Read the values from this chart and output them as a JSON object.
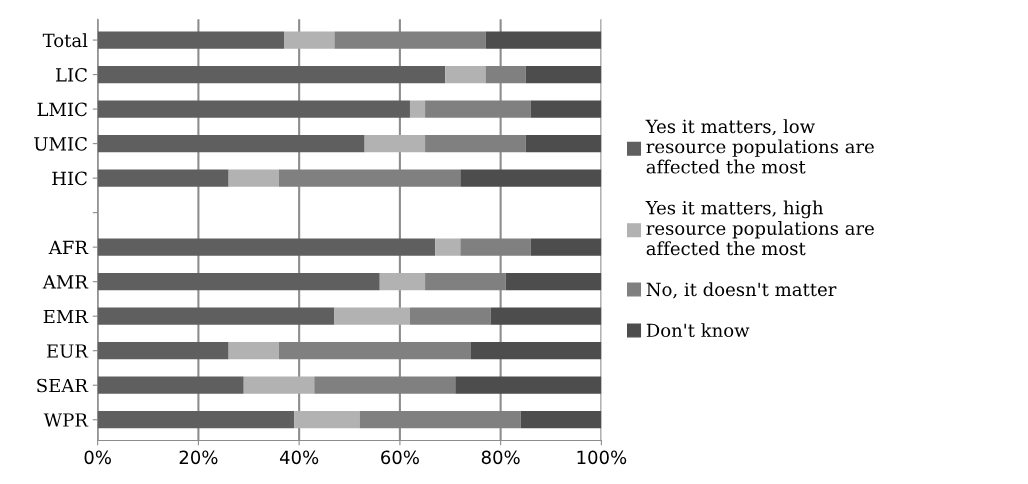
{
  "chart_data": {
    "type": "bar",
    "orientation": "horizontal",
    "stacked": true,
    "categories": [
      "Total",
      "LIC",
      "LMIC",
      "UMIC",
      "HIC",
      null,
      "AFR",
      "AMR",
      "EMR",
      "EUR",
      "SEAR",
      "WPR"
    ],
    "series": [
      {
        "name": "Yes it matters, low resource populations are affected the most",
        "color": "#5f5f5f",
        "values": [
          37,
          69,
          62,
          53,
          26,
          null,
          67,
          56,
          47,
          26,
          29,
          39
        ]
      },
      {
        "name": "Yes it matters, high resource populations are affected the most",
        "color": "#b2b2b2",
        "values": [
          10,
          8,
          3,
          12,
          10,
          null,
          5,
          9,
          15,
          10,
          14,
          13
        ]
      },
      {
        "name": "No, it doesn't matter",
        "color": "#808080",
        "values": [
          30,
          8,
          21,
          20,
          36,
          null,
          14,
          16,
          16,
          38,
          28,
          32
        ]
      },
      {
        "name": "Don't know",
        "color": "#4d4d4d",
        "values": [
          23,
          15,
          14,
          15,
          28,
          null,
          14,
          19,
          22,
          26,
          29,
          16
        ]
      }
    ],
    "xlim": [
      0,
      100
    ],
    "xticks": [
      {
        "value": 0,
        "label": "0%"
      },
      {
        "value": 20,
        "label": "20%"
      },
      {
        "value": 40,
        "label": "40%"
      },
      {
        "value": 60,
        "label": "60%"
      },
      {
        "value": 80,
        "label": "80%"
      },
      {
        "value": 100,
        "label": "100%"
      }
    ],
    "grid": "x",
    "legend": "right"
  }
}
